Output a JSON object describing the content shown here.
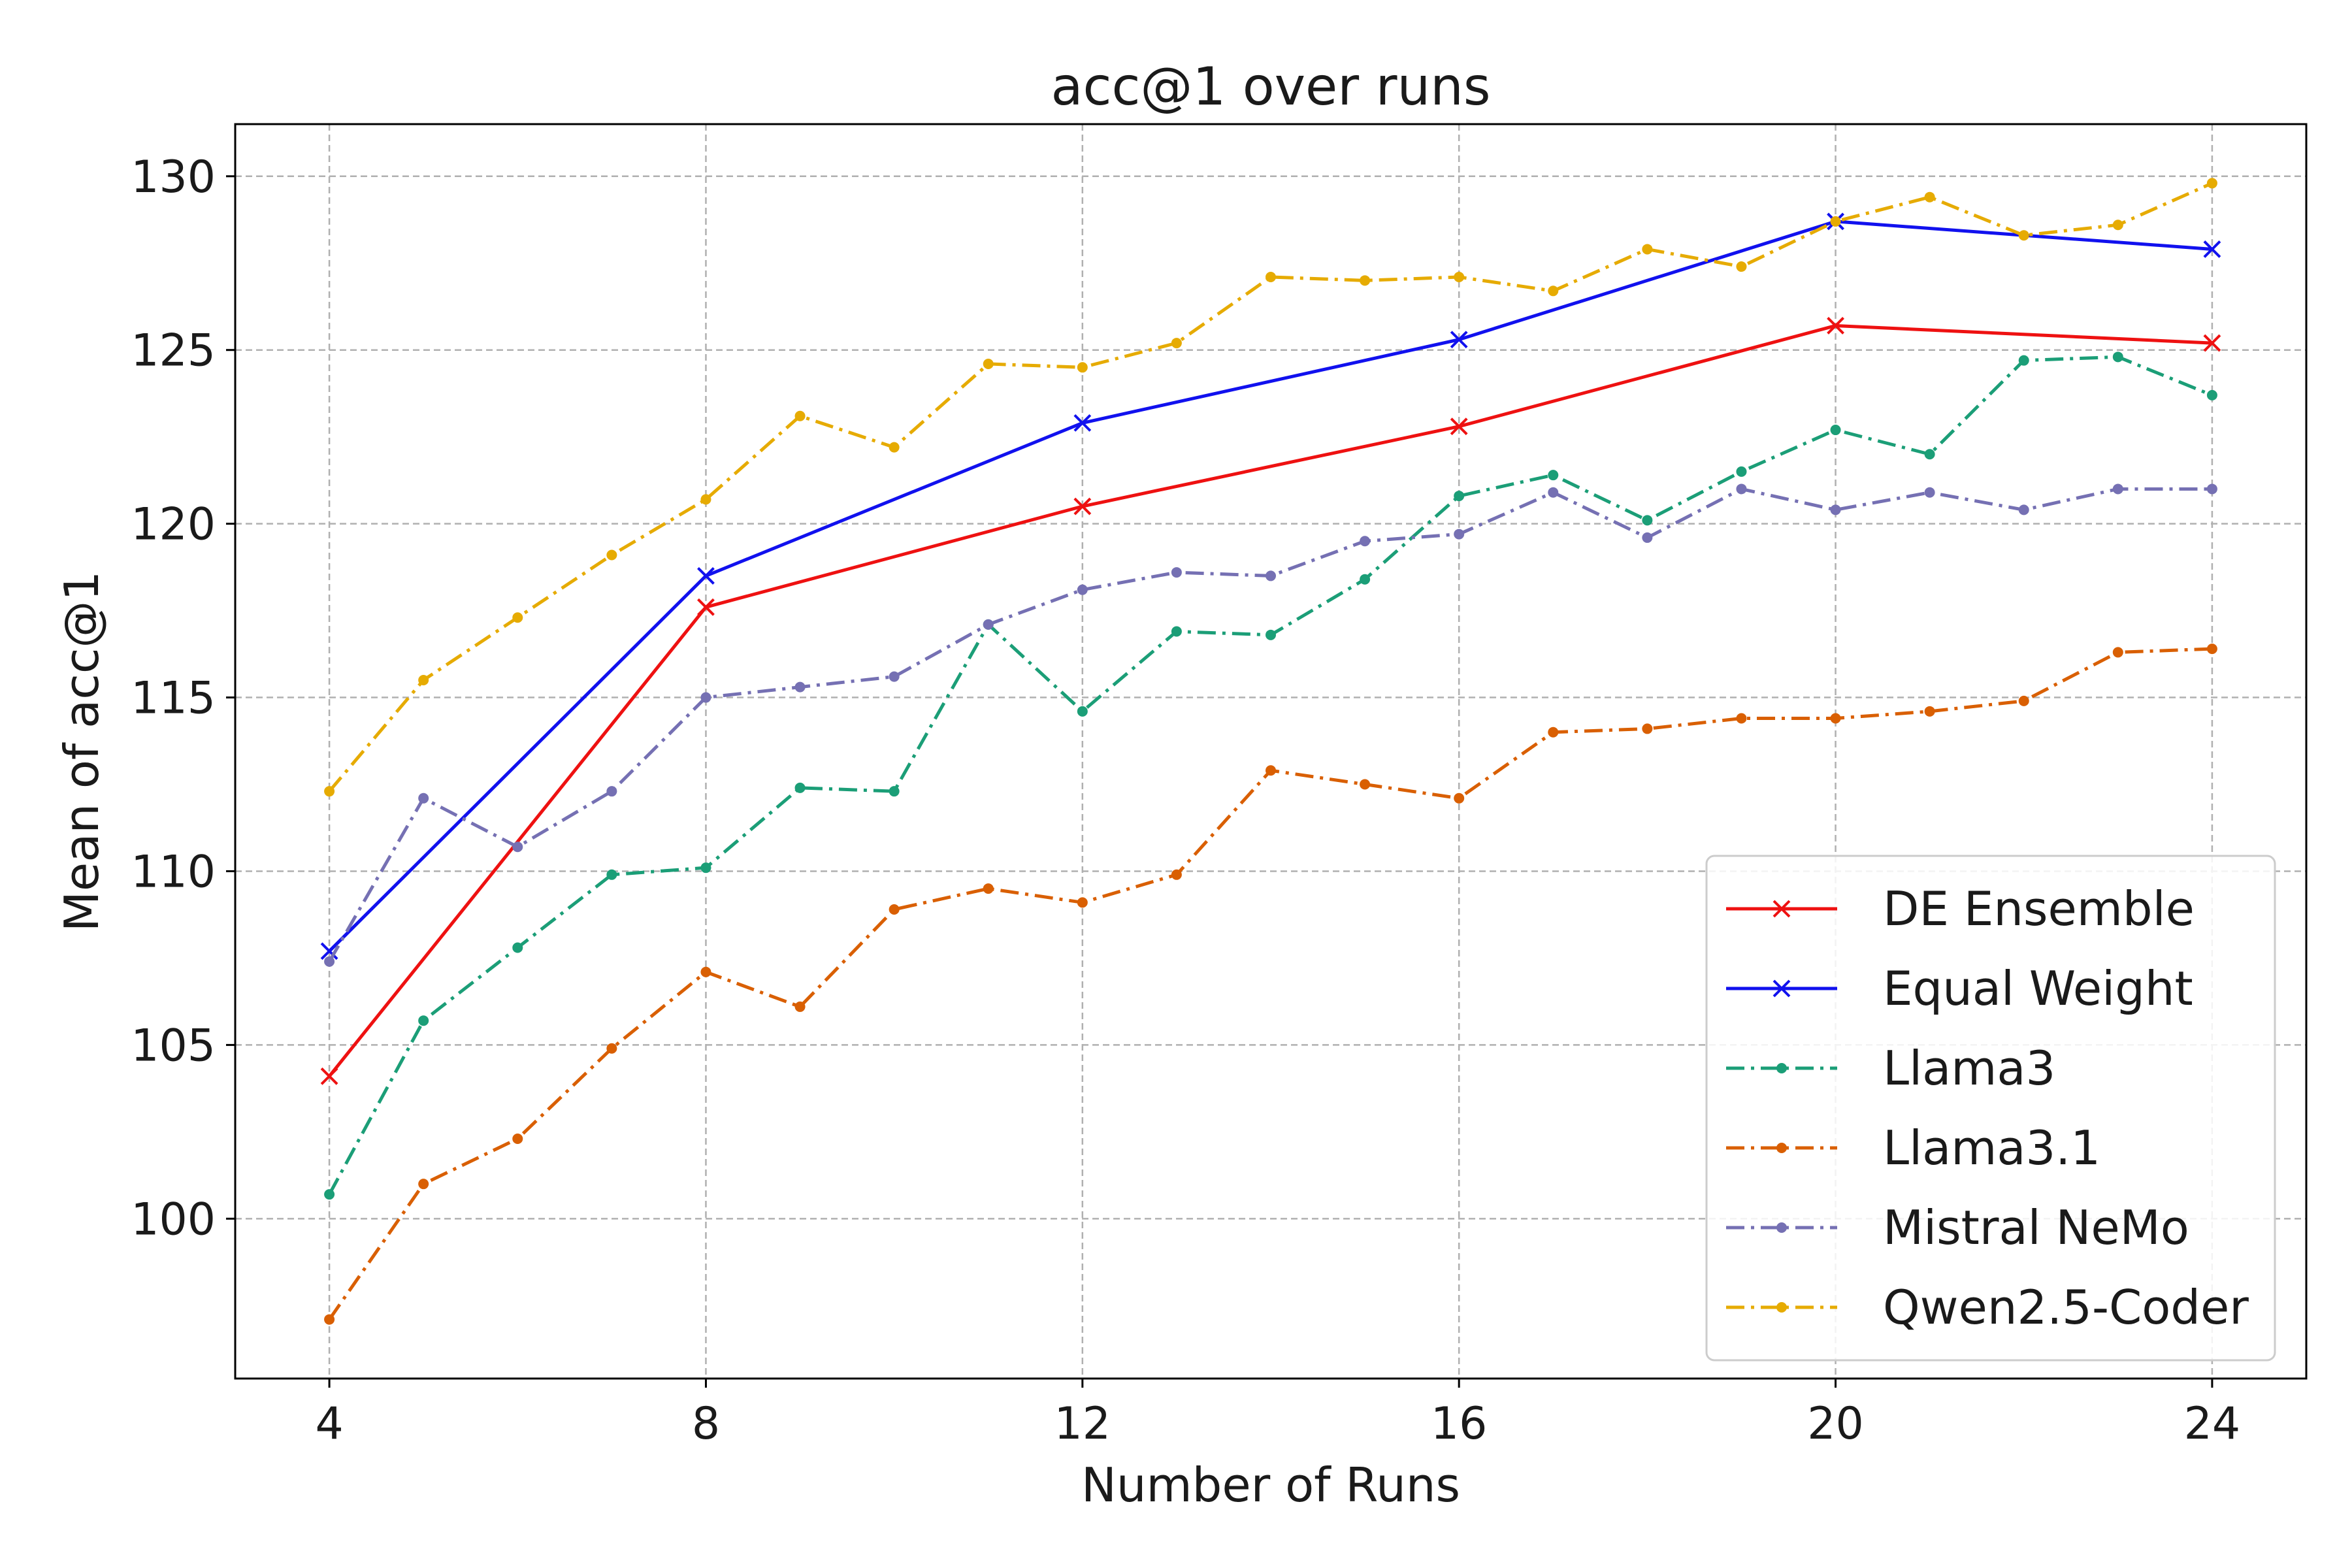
{
  "chart_data": {
    "type": "line",
    "title": "acc@1 over runs",
    "xlabel": "Number of Runs",
    "ylabel": "Mean of acc@1",
    "xlim": [
      3,
      25
    ],
    "ylim": [
      95.4,
      131.5
    ],
    "xticks": [
      4,
      8,
      12,
      16,
      20,
      24
    ],
    "yticks": [
      100,
      105,
      110,
      115,
      120,
      125,
      130
    ],
    "grid": true,
    "legend_position": "lower-right",
    "series": [
      {
        "name": "DE Ensemble",
        "color": "#ee1111",
        "style": "solid",
        "marker": "x",
        "x": [
          4,
          8,
          12,
          16,
          20,
          24
        ],
        "y": [
          104.1,
          117.6,
          120.5,
          122.8,
          125.7,
          125.2
        ]
      },
      {
        "name": "Equal Weight",
        "color": "#1111ee",
        "style": "solid",
        "marker": "x",
        "x": [
          4,
          8,
          12,
          16,
          20,
          24
        ],
        "y": [
          107.7,
          118.5,
          122.9,
          125.3,
          128.7,
          127.9
        ]
      },
      {
        "name": "Llama3",
        "color": "#1b9e77",
        "style": "dashdot",
        "marker": "dot",
        "x": [
          4,
          5,
          6,
          7,
          8,
          9,
          10,
          11,
          12,
          13,
          14,
          15,
          16,
          17,
          18,
          19,
          20,
          21,
          22,
          23,
          24
        ],
        "y": [
          100.7,
          105.7,
          107.8,
          109.9,
          110.1,
          112.4,
          112.3,
          117.1,
          114.6,
          116.9,
          116.8,
          118.4,
          120.8,
          121.4,
          120.1,
          121.5,
          122.7,
          122.0,
          124.7,
          124.8,
          123.7
        ]
      },
      {
        "name": "Llama3.1",
        "color": "#d95f02",
        "style": "dashdot",
        "marker": "dot",
        "x": [
          4,
          5,
          6,
          7,
          8,
          9,
          10,
          11,
          12,
          13,
          14,
          15,
          16,
          17,
          18,
          19,
          20,
          21,
          22,
          23,
          24
        ],
        "y": [
          97.1,
          101.0,
          102.3,
          104.9,
          107.1,
          106.1,
          108.9,
          109.5,
          109.1,
          109.9,
          112.9,
          112.5,
          112.1,
          114.0,
          114.1,
          114.4,
          114.4,
          114.6,
          114.9,
          116.3,
          116.4
        ]
      },
      {
        "name": "Mistral NeMo",
        "color": "#7570b3",
        "style": "dashdot",
        "marker": "dot",
        "x": [
          4,
          5,
          6,
          7,
          8,
          9,
          10,
          11,
          12,
          13,
          14,
          15,
          16,
          17,
          18,
          19,
          20,
          21,
          22,
          23,
          24
        ],
        "y": [
          107.4,
          112.1,
          110.7,
          112.3,
          115.0,
          115.3,
          115.6,
          117.1,
          118.1,
          118.6,
          118.5,
          119.5,
          119.7,
          120.9,
          119.6,
          121.0,
          120.4,
          120.9,
          120.4,
          121.0,
          121.0
        ]
      },
      {
        "name": "Qwen2.5-Coder",
        "color": "#e6ab02",
        "style": "dashdot",
        "marker": "dot",
        "x": [
          4,
          5,
          6,
          7,
          8,
          9,
          10,
          11,
          12,
          13,
          14,
          15,
          16,
          17,
          18,
          19,
          20,
          21,
          22,
          23,
          24
        ],
        "y": [
          112.3,
          115.5,
          117.3,
          119.1,
          120.7,
          123.1,
          122.2,
          124.6,
          124.5,
          125.2,
          127.1,
          127.0,
          127.1,
          126.7,
          127.9,
          127.4,
          128.7,
          129.4,
          128.3,
          128.6,
          129.8
        ]
      }
    ]
  }
}
